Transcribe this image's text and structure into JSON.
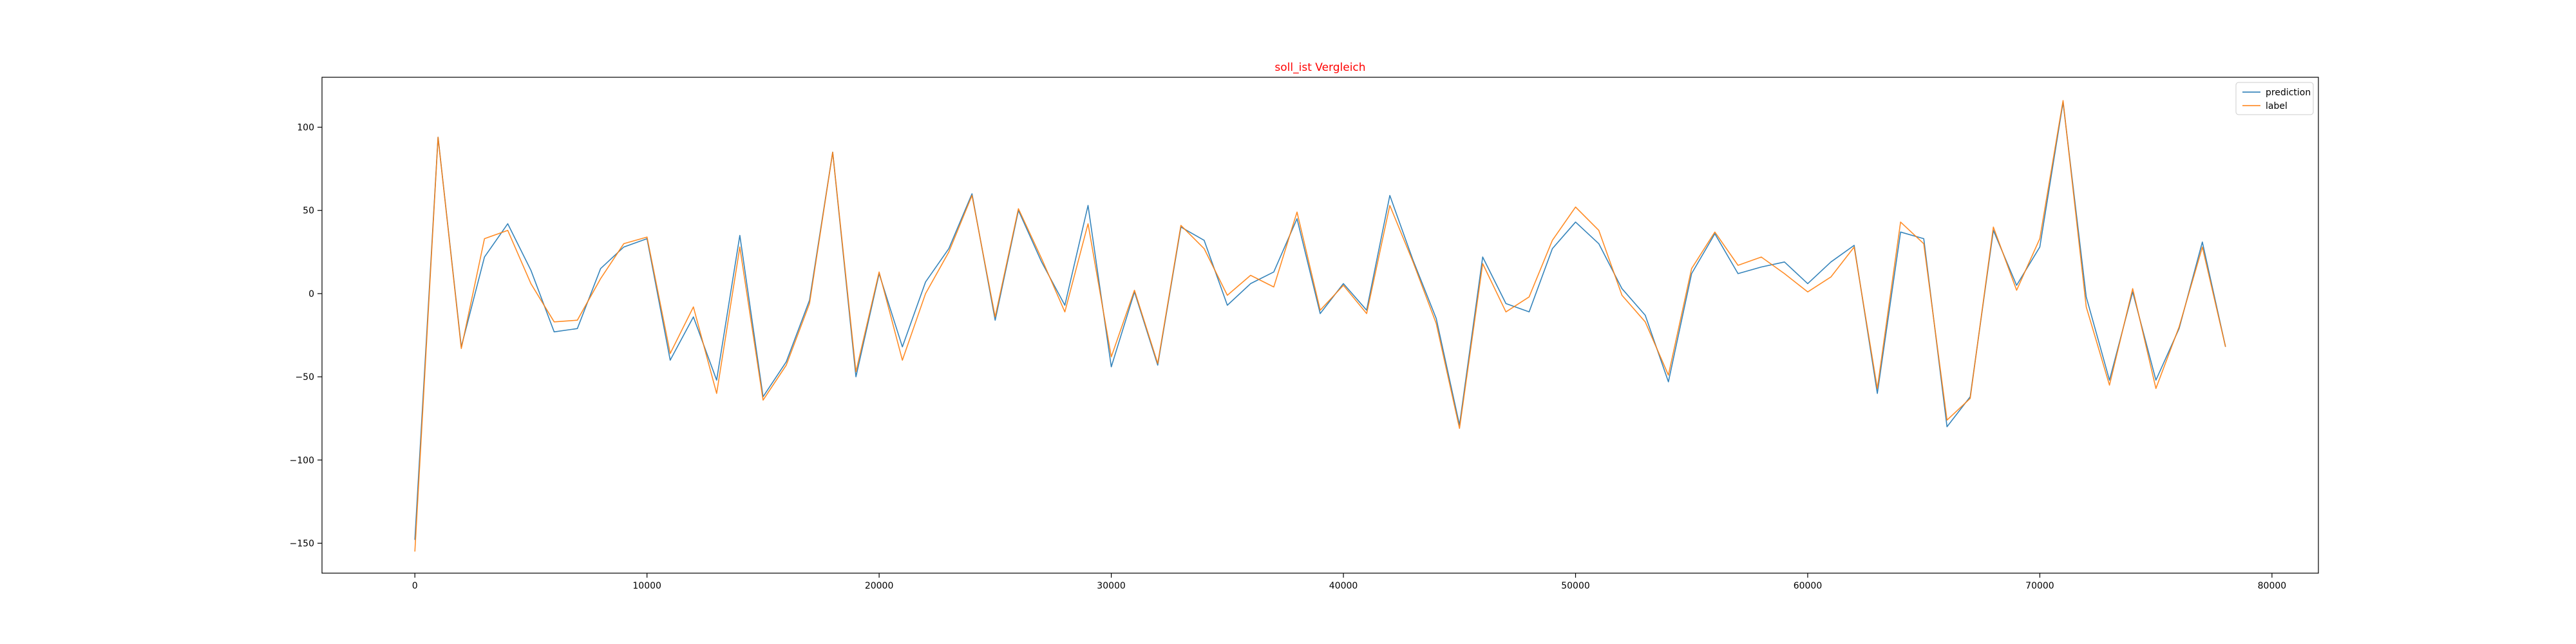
{
  "chart_data": {
    "type": "line",
    "title": "soll_ist Vergleich",
    "title_color": "#ff0000",
    "xlabel": "",
    "ylabel": "",
    "xlim": [
      -4000,
      82000
    ],
    "ylim": [
      -168,
      130
    ],
    "x_ticks": [
      0,
      10000,
      20000,
      30000,
      40000,
      50000,
      60000,
      70000,
      80000
    ],
    "y_ticks": [
      -150,
      -100,
      -50,
      0,
      50,
      100
    ],
    "grid": false,
    "legend_position": "top-right",
    "x": [
      0,
      1000,
      2000,
      3000,
      4000,
      5000,
      6000,
      7000,
      8000,
      9000,
      10000,
      11000,
      12000,
      13000,
      14000,
      15000,
      16000,
      17000,
      18000,
      19000,
      20000,
      21000,
      22000,
      23000,
      24000,
      25000,
      26000,
      27000,
      28000,
      29000,
      30000,
      31000,
      32000,
      33000,
      34000,
      35000,
      36000,
      37000,
      38000,
      39000,
      40000,
      41000,
      42000,
      43000,
      44000,
      45000,
      46000,
      47000,
      48000,
      49000,
      50000,
      51000,
      52000,
      53000,
      54000,
      55000,
      56000,
      57000,
      58000,
      59000,
      60000,
      61000,
      62000,
      63000,
      64000,
      65000,
      66000,
      67000,
      68000,
      69000,
      70000,
      71000,
      72000,
      73000,
      74000,
      75000,
      76000,
      77000,
      78000
    ],
    "series": [
      {
        "name": "prediction",
        "color": "#1f77b4",
        "values": [
          -148,
          94,
          -32,
          22,
          42,
          14,
          -23,
          -21,
          15,
          28,
          33,
          -40,
          -14,
          -52,
          35,
          -62,
          -41,
          -4,
          85,
          -50,
          12,
          -32,
          7,
          27,
          60,
          -16,
          50,
          19,
          -7,
          53,
          -44,
          1,
          -43,
          40,
          32,
          -7,
          6,
          13,
          45,
          -12,
          6,
          -10,
          59,
          20,
          -15,
          -79,
          22,
          -6,
          -11,
          27,
          43,
          30,
          3,
          -13,
          -53,
          12,
          36,
          12,
          16,
          19,
          6,
          19,
          29,
          -60,
          37,
          33,
          -80,
          -62,
          38,
          5,
          28,
          115,
          -2,
          -52,
          1,
          -52,
          -21,
          31,
          -32
        ]
      },
      {
        "name": "label",
        "color": "#ff7f0e",
        "values": [
          -155,
          94,
          -33,
          33,
          38,
          6,
          -17,
          -16,
          9,
          30,
          34,
          -36,
          -8,
          -60,
          28,
          -64,
          -43,
          -6,
          85,
          -47,
          13,
          -40,
          0,
          25,
          59,
          -14,
          51,
          21,
          -11,
          42,
          -38,
          2,
          -42,
          41,
          27,
          -1,
          11,
          4,
          49,
          -10,
          5,
          -12,
          53,
          19,
          -18,
          -81,
          18,
          -11,
          -2,
          32,
          52,
          38,
          -1,
          -17,
          -49,
          15,
          37,
          17,
          22,
          12,
          1,
          10,
          28,
          -57,
          43,
          30,
          -76,
          -63,
          40,
          2,
          33,
          116,
          -8,
          -55,
          3,
          -57,
          -20,
          28,
          -32
        ]
      }
    ]
  }
}
